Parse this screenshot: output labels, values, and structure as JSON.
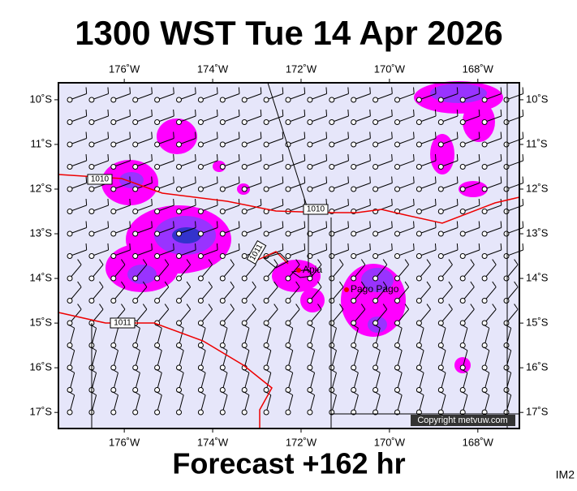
{
  "header": {
    "title": "1300 WST Tue 14 Apr 2026"
  },
  "map": {
    "lon_ticks": [
      {
        "value": -176,
        "label": "176˚W"
      },
      {
        "value": -174,
        "label": "174˚W"
      },
      {
        "value": -172,
        "label": "172˚W"
      },
      {
        "value": -170,
        "label": "170˚W"
      },
      {
        "value": -168,
        "label": "168˚W"
      }
    ],
    "lat_ticks": [
      {
        "value": -10,
        "label": "10˚S"
      },
      {
        "value": -11,
        "label": "11˚S"
      },
      {
        "value": -12,
        "label": "12˚S"
      },
      {
        "value": -13,
        "label": "13˚S"
      },
      {
        "value": -14,
        "label": "14˚S"
      },
      {
        "value": -15,
        "label": "15˚S"
      },
      {
        "value": -16,
        "label": "16˚S"
      },
      {
        "value": -17,
        "label": "17˚S"
      }
    ],
    "xlim": [
      -177.49,
      -167.06
    ],
    "ylim": [
      -9.62,
      -17.36
    ],
    "places": [
      "Apia",
      "Pago Pago"
    ],
    "isobar_labels": [
      "1010",
      "1010",
      "1011",
      "1011"
    ],
    "copyright": "Copyright metvuw.com"
  },
  "footer": {
    "forecast": "Forecast +162 hr",
    "code": "IM2"
  }
}
